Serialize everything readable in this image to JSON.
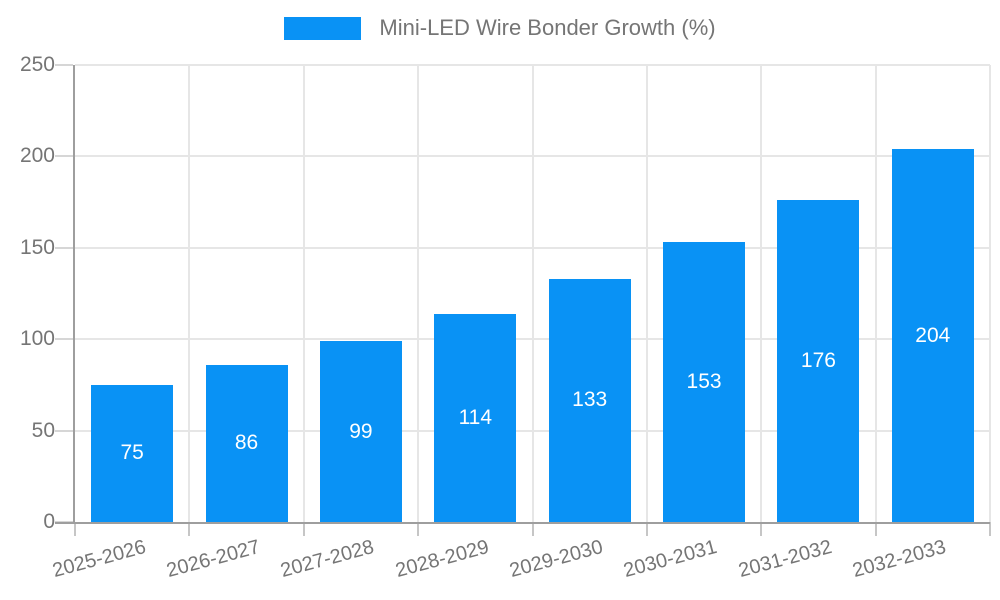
{
  "legend": {
    "label": "Mini-LED Wire Bonder Growth (%)"
  },
  "chart_data": {
    "type": "bar",
    "title": "Mini-LED Wire Bonder Growth (%)",
    "categories": [
      "2025-2026",
      "2026-2027",
      "2027-2028",
      "2028-2029",
      "2029-2030",
      "2030-2031",
      "2031-2032",
      "2032-2033"
    ],
    "series": [
      {
        "name": "Mini-LED Wire Bonder Growth (%)",
        "values": [
          75,
          86,
          99,
          114,
          133,
          153,
          176,
          204
        ]
      }
    ],
    "xlabel": "",
    "ylabel": "",
    "ylim": [
      0,
      250
    ],
    "yticks": [
      0,
      50,
      100,
      150,
      200,
      250
    ],
    "grid": true,
    "legend_position": "top",
    "value_labels": "inside-center",
    "colors": {
      "bar": "#0992f5",
      "bar_value_text": "#ffffff",
      "axis_text": "#757575",
      "gridline": "#e6e6e6",
      "axis_line": "#9e9e9e"
    }
  }
}
